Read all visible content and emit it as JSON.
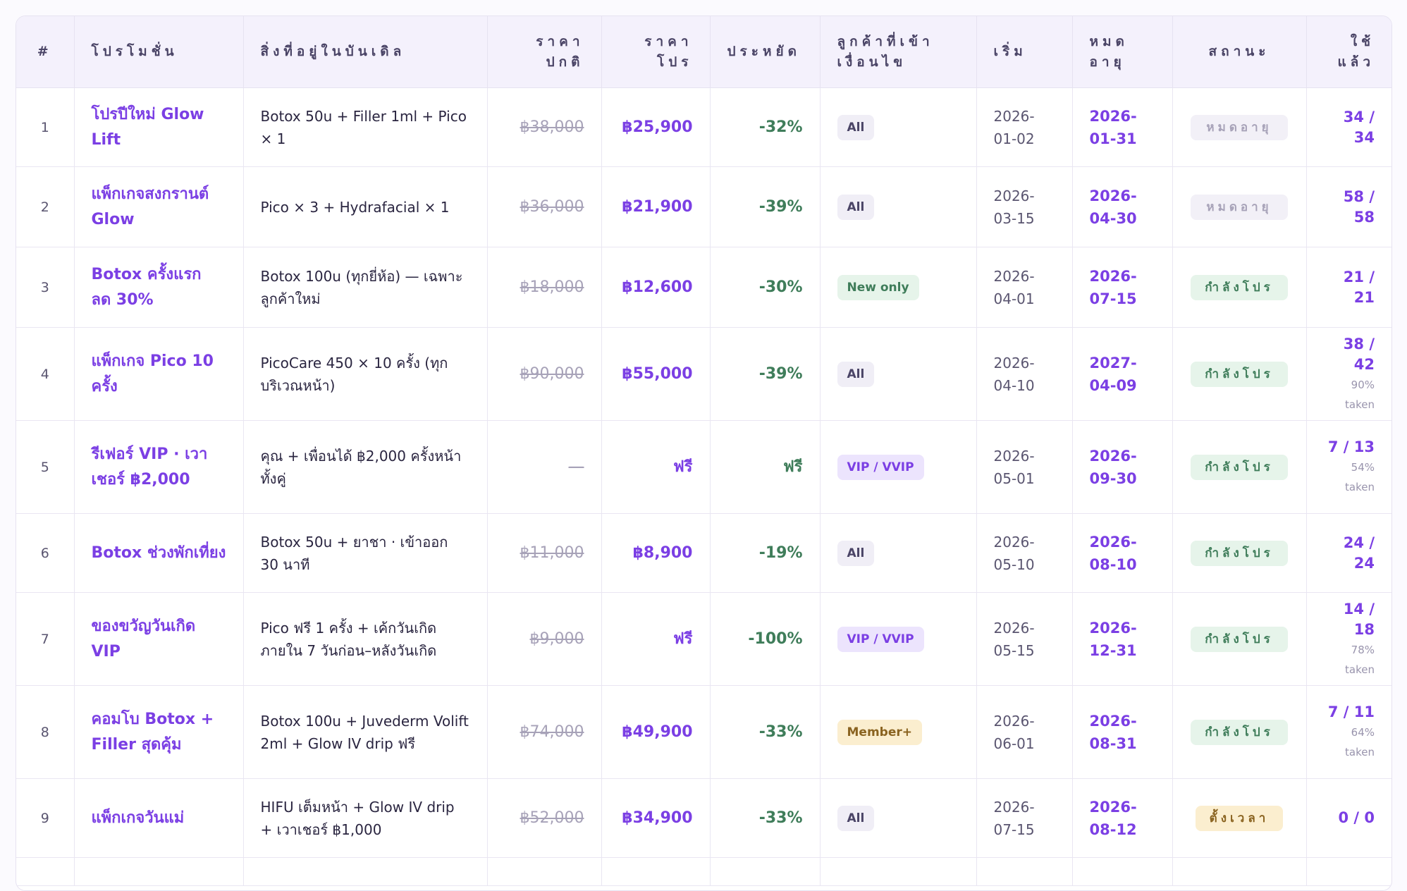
{
  "headers": {
    "idx": "#",
    "promo": "โปรโมชั่น",
    "content": "สิ่งที่อยู่ในบันเดิล",
    "regular": "ราคา ปกติ",
    "promo_price": "ราคา โปร",
    "savings": "ประหยัด",
    "eligibility": "ลูกค้าที่เข้า เงื่อนไข",
    "start": "เริ่ม",
    "expire": "หมด อายุ",
    "status": "สถานะ",
    "used": "ใช้ แล้ว"
  },
  "rows": [
    {
      "idx": "1",
      "name": "โปรปีใหม่ Glow Lift",
      "content": "Botox 50u + Filler 1ml + Pico × 1",
      "regular": "฿38,000",
      "price": "฿25,900",
      "saving": "-32%",
      "eligibility": "All",
      "start": "2026-01-02",
      "expire": "2026-01-31",
      "status": "หมดอายุ",
      "used": "34 / 34",
      "taken": ""
    },
    {
      "idx": "2",
      "name": "แพ็กเกจสงกรานต์ Glow",
      "content": "Pico × 3 + Hydrafacial × 1",
      "regular": "฿36,000",
      "price": "฿21,900",
      "saving": "-39%",
      "eligibility": "All",
      "start": "2026-03-15",
      "expire": "2026-04-30",
      "status": "หมดอายุ",
      "used": "58 / 58",
      "taken": ""
    },
    {
      "idx": "3",
      "name": "Botox ครั้งแรก ลด 30%",
      "content": "Botox 100u (ทุกยี่ห้อ) — เฉพาะลูกค้าใหม่",
      "regular": "฿18,000",
      "price": "฿12,600",
      "saving": "-30%",
      "eligibility": "New only",
      "start": "2026-04-01",
      "expire": "2026-07-15",
      "status": "กำลังโปร",
      "used": "21 / 21",
      "taken": ""
    },
    {
      "idx": "4",
      "name": "แพ็กเกจ Pico 10 ครั้ง",
      "content": "PicoCare 450 × 10 ครั้ง (ทุกบริเวณหน้า)",
      "regular": "฿90,000",
      "price": "฿55,000",
      "saving": "-39%",
      "eligibility": "All",
      "start": "2026-04-10",
      "expire": "2027-04-09",
      "status": "กำลังโปร",
      "used": "38 / 42",
      "taken": "90% taken"
    },
    {
      "idx": "5",
      "name": "รีเฟอร์ VIP · เวาเชอร์ ฿2,000",
      "content": "คุณ + เพื่อนได้ ฿2,000 ครั้งหน้าทั้งคู่",
      "regular": "—",
      "price": "ฟรี",
      "saving": "ฟรี",
      "eligibility": "VIP / VVIP",
      "start": "2026-05-01",
      "expire": "2026-09-30",
      "status": "กำลังโปร",
      "used": "7 / 13",
      "taken": "54% taken"
    },
    {
      "idx": "6",
      "name": "Botox ช่วงพักเที่ยง",
      "content": "Botox 50u + ยาชา · เข้าออก 30 นาที",
      "regular": "฿11,000",
      "price": "฿8,900",
      "saving": "-19%",
      "eligibility": "All",
      "start": "2026-05-10",
      "expire": "2026-08-10",
      "status": "กำลังโปร",
      "used": "24 / 24",
      "taken": ""
    },
    {
      "idx": "7",
      "name": "ของขวัญวันเกิด VIP",
      "content": "Pico ฟรี 1 ครั้ง + เค้กวันเกิด ภายใน 7 วันก่อน–หลังวันเกิด",
      "regular": "฿9,000",
      "price": "ฟรี",
      "saving": "-100%",
      "eligibility": "VIP / VVIP",
      "start": "2026-05-15",
      "expire": "2026-12-31",
      "status": "กำลังโปร",
      "used": "14 / 18",
      "taken": "78% taken"
    },
    {
      "idx": "8",
      "name": "คอมโบ Botox + Filler สุดคุ้ม",
      "content": "Botox 100u + Juvederm Volift 2ml + Glow IV drip ฟรี",
      "regular": "฿74,000",
      "price": "฿49,900",
      "saving": "-33%",
      "eligibility": "Member+",
      "start": "2026-06-01",
      "expire": "2026-08-31",
      "status": "กำลังโปร",
      "used": "7 / 11",
      "taken": "64% taken"
    },
    {
      "idx": "9",
      "name": "แพ็กเกจวันแม่",
      "content": "HIFU เต็มหน้า + Glow IV drip + เวาเชอร์ ฿1,000",
      "regular": "฿52,000",
      "price": "฿34,900",
      "saving": "-33%",
      "eligibility": "All",
      "start": "2026-07-15",
      "expire": "2026-08-12",
      "status": "ตั้งเวลา",
      "used": "0 / 0",
      "taken": ""
    }
  ],
  "colors": {
    "accent": "#7b3fe4",
    "savings_green": "#3f7d5a",
    "header_bg": "#f4f1fc",
    "scheduled_bg": "#fbeecf"
  }
}
